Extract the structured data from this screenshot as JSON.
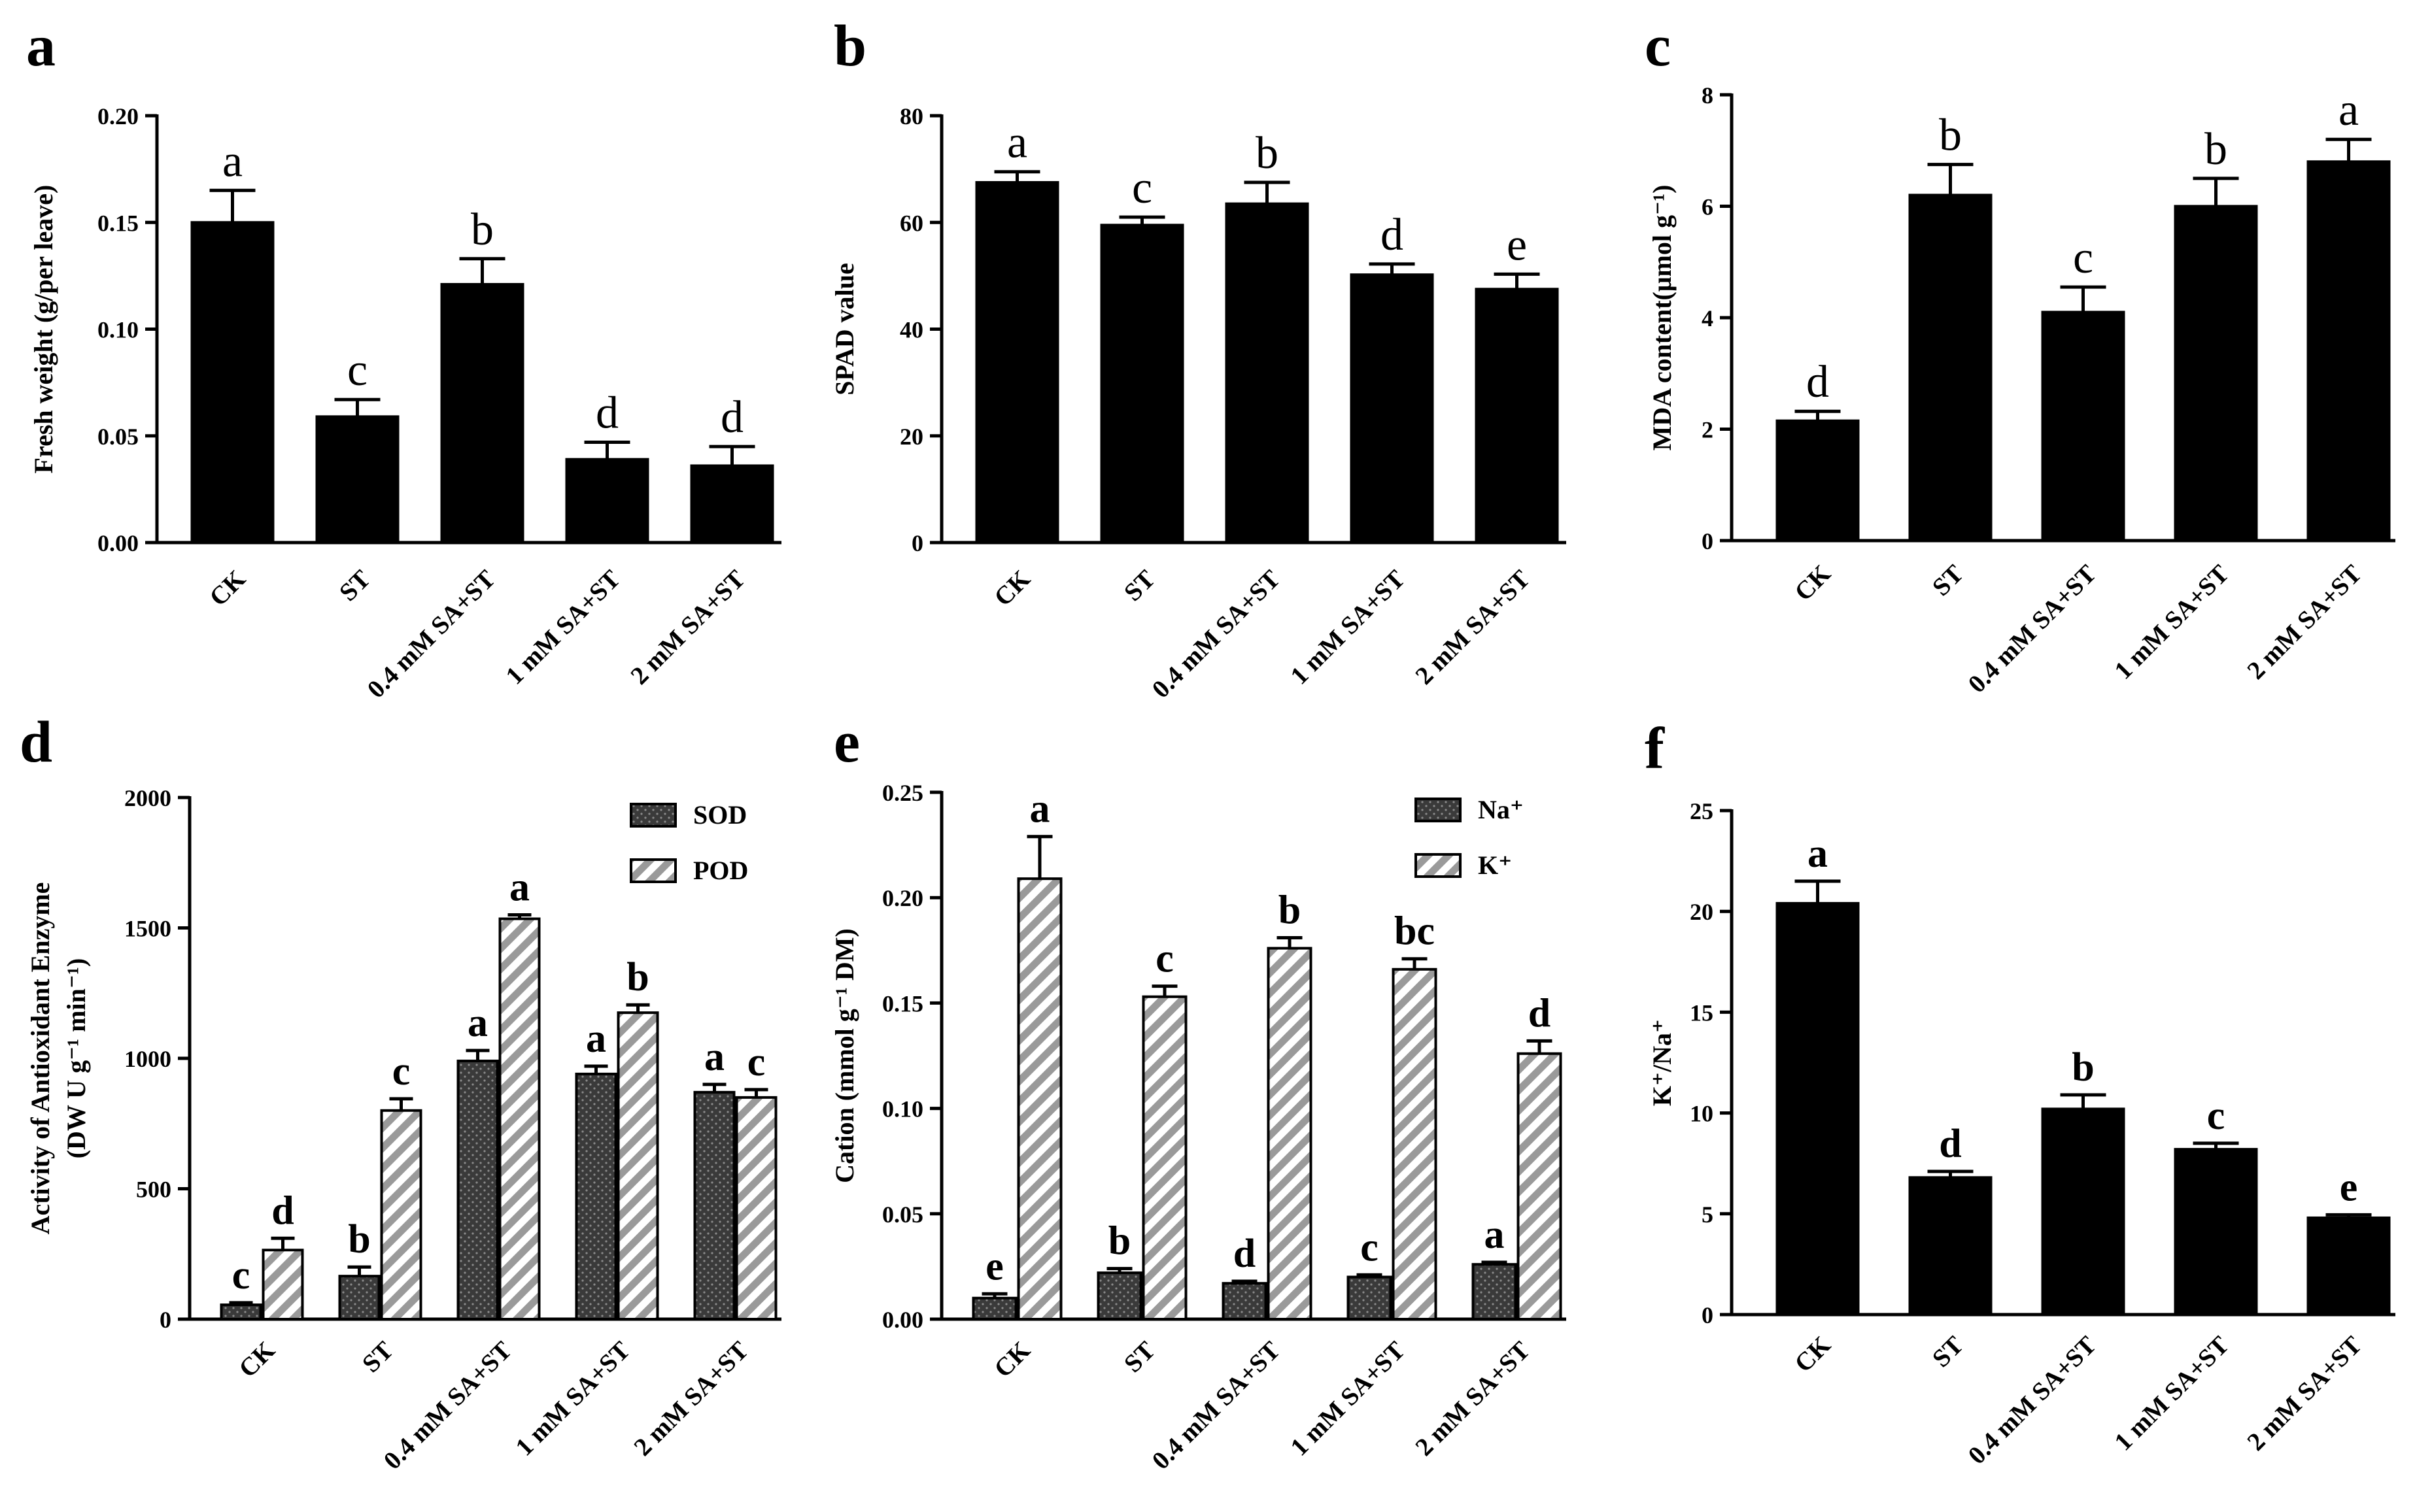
{
  "chart_data": [
    {
      "panel": "a",
      "type": "bar",
      "categories": [
        "CK",
        "ST",
        "0.4 mM SA+ST",
        "1 mM SA+ST",
        "2 mM SA+ST"
      ],
      "values": [
        0.15,
        0.059,
        0.121,
        0.039,
        0.036
      ],
      "errors": [
        0.015,
        0.008,
        0.012,
        0.008,
        0.009
      ],
      "letters": [
        "a",
        "c",
        "b",
        "d",
        "d"
      ],
      "ylabel": "Fresh weight (g/per leave)",
      "ylim": [
        0,
        0.2
      ],
      "yticks": [
        "0.00",
        "0.05",
        "0.10",
        "0.15",
        "0.20"
      ]
    },
    {
      "panel": "b",
      "type": "bar",
      "categories": [
        "CK",
        "ST",
        "0.4 mM SA+ST",
        "1 mM SA+ST",
        "2 mM SA+ST"
      ],
      "values": [
        67.5,
        59.5,
        63.5,
        50.2,
        47.5
      ],
      "errors": [
        2.0,
        1.5,
        4.0,
        2.0,
        2.8
      ],
      "letters": [
        "a",
        "c",
        "b",
        "d",
        "e"
      ],
      "ylabel": "SPAD value",
      "ylim": [
        0,
        80
      ],
      "yticks": [
        "0",
        "20",
        "40",
        "60",
        "80"
      ]
    },
    {
      "panel": "c",
      "type": "bar",
      "categories": [
        "CK",
        "ST",
        "0.4 mM SA+ST",
        "1 mM SA+ST",
        "2 mM SA+ST"
      ],
      "values": [
        2.15,
        6.2,
        4.1,
        6.0,
        6.8
      ],
      "errors": [
        0.17,
        0.55,
        0.45,
        0.5,
        0.4
      ],
      "letters": [
        "d",
        "b",
        "c",
        "b",
        "a"
      ],
      "ylabel": "MDA content(μmol g⁻¹)",
      "ylim": [
        0,
        8
      ],
      "yticks": [
        "0",
        "2",
        "4",
        "6",
        "8"
      ]
    },
    {
      "panel": "d",
      "type": "bar",
      "categories": [
        "CK",
        "ST",
        "0.4 mM SA+ST",
        "1 mM SA+ST",
        "2 mM SA+ST"
      ],
      "series": [
        {
          "name": "SOD",
          "values": [
            55,
            165,
            990,
            940,
            870
          ],
          "errors": [
            8,
            35,
            40,
            30,
            30
          ],
          "letters": [
            "c",
            "b",
            "a",
            "a",
            "a"
          ]
        },
        {
          "name": "POD",
          "values": [
            265,
            800,
            1535,
            1175,
            850
          ],
          "errors": [
            45,
            45,
            15,
            30,
            30
          ],
          "letters": [
            "d",
            "c",
            "a",
            "b",
            "c"
          ]
        }
      ],
      "ylabel_line1": "Activity of Antioxidant Enzyme",
      "ylabel_line2": "(DW U g⁻¹ min⁻¹)",
      "ylim": [
        0,
        2000
      ],
      "yticks": [
        "0",
        "500",
        "1000",
        "1500",
        "2000"
      ],
      "legend_position": "top-right"
    },
    {
      "panel": "e",
      "type": "bar",
      "categories": [
        "CK",
        "ST",
        "0.4 mM SA+ST",
        "1 mM SA+ST",
        "2 mM SA+ST"
      ],
      "series": [
        {
          "name": "Na⁺",
          "values": [
            0.01,
            0.022,
            0.017,
            0.02,
            0.026
          ],
          "errors": [
            0.002,
            0.002,
            0.001,
            0.001,
            0.001
          ],
          "letters": [
            "e",
            "b",
            "d",
            "c",
            "a"
          ]
        },
        {
          "name": "K⁺",
          "values": [
            0.209,
            0.153,
            0.176,
            0.166,
            0.126
          ],
          "errors": [
            0.02,
            0.005,
            0.005,
            0.005,
            0.006
          ],
          "letters": [
            "a",
            "c",
            "b",
            "bc",
            "d"
          ]
        }
      ],
      "ylabel": "Cation (mmol g⁻¹ DM)",
      "ylim": [
        0,
        0.25
      ],
      "yticks": [
        "0.00",
        "0.05",
        "0.10",
        "0.15",
        "0.20",
        "0.25"
      ],
      "legend_position": "top-right"
    },
    {
      "panel": "f",
      "type": "bar",
      "categories": [
        "CK",
        "ST",
        "0.4 mM SA+ST",
        "1 mM SA+ST",
        "2 mM SA+ST"
      ],
      "values": [
        20.4,
        6.8,
        10.2,
        8.2,
        4.8
      ],
      "errors": [
        1.1,
        0.3,
        0.7,
        0.3,
        0.15
      ],
      "letters": [
        "a",
        "d",
        "b",
        "c",
        "e"
      ],
      "ylabel": "K⁺/Na⁺",
      "ylim": [
        0,
        25
      ],
      "yticks": [
        "0",
        "5",
        "10",
        "15",
        "20",
        "25"
      ]
    }
  ]
}
